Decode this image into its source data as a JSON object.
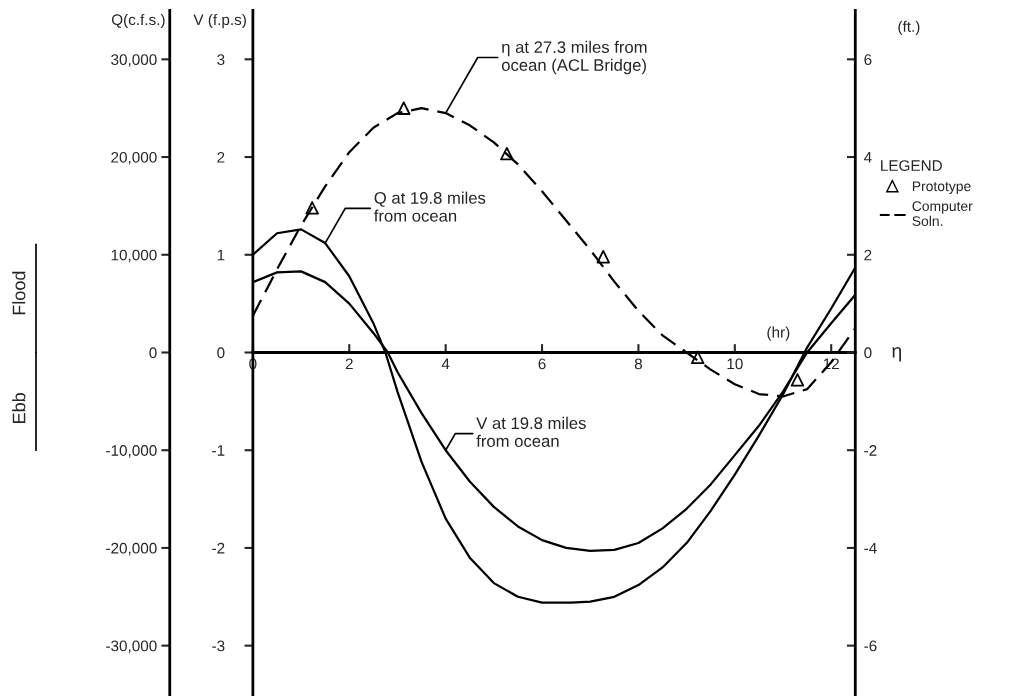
{
  "chart_data": {
    "type": "line",
    "xlabel": "(hr)",
    "ylabel": "V (f.p.s)",
    "y2label": "(ft.)",
    "y3label": "Q(c.f.s.)",
    "legend_title": "LEGEND",
    "annotations": [
      "Flood",
      "Ebb",
      "η",
      "Computer\nSoln."
    ],
    "xlim": [
      0,
      12.5
    ],
    "xticks": [
      0,
      2,
      4,
      6,
      8,
      10,
      12
    ],
    "ylim": [
      -3.5,
      3.5
    ],
    "yticks": [
      -3,
      -2,
      -1,
      0,
      1,
      2,
      3
    ],
    "y2lim": [
      -7,
      7
    ],
    "y2ticks": [
      -6,
      -4,
      -2,
      0,
      2,
      4,
      6
    ],
    "y3lim": [
      -35000,
      35000
    ],
    "y3ticks": [
      {
        "value": -30000,
        "label": "-30,000"
      },
      {
        "value": -20000,
        "label": "-20,000"
      },
      {
        "value": -10000,
        "label": "-10,000"
      },
      0,
      {
        "value": 10000,
        "label": "10,000"
      },
      {
        "value": 20000,
        "label": "20,000"
      },
      {
        "value": 30000,
        "label": "30,000"
      }
    ],
    "legend": "right",
    "series": [
      {
        "name": "Q at 19.8 miles\nfrom ocean",
        "axis": "y3",
        "color": "#000000",
        "line_style": "solid",
        "x": [
          0,
          0.5,
          1,
          1.5,
          2,
          2.5,
          2.75,
          3,
          3.5,
          4,
          4.5,
          5,
          5.5,
          6,
          6.6,
          7,
          7.5,
          8,
          8.5,
          9,
          9.5,
          10,
          10.5,
          11,
          11.5,
          12,
          12.5
        ],
        "values": [
          10000,
          12200,
          12600,
          11200,
          7800,
          3000,
          0,
          -4000,
          -11200,
          -17000,
          -21000,
          -23600,
          -25000,
          -25600,
          -25600,
          -25500,
          -25000,
          -23800,
          -22000,
          -19500,
          -16200,
          -12500,
          -8500,
          -4300,
          500,
          4500,
          8700
        ]
      },
      {
        "name": "V at 19.8 miles\nfrom ocean",
        "axis": "y",
        "color": "#000000",
        "line_style": "solid",
        "x": [
          0,
          0.5,
          1,
          1.5,
          2,
          2.5,
          2.8,
          3,
          3.5,
          4,
          4.5,
          5,
          5.5,
          6,
          6.5,
          7,
          7.5,
          8,
          8.5,
          9,
          9.5,
          10,
          10.5,
          11,
          11.5,
          12,
          12.5
        ],
        "values": [
          0.72,
          0.82,
          0.83,
          0.72,
          0.5,
          0.2,
          0,
          -0.2,
          -0.62,
          -1.0,
          -1.32,
          -1.58,
          -1.78,
          -1.92,
          -2.0,
          -2.03,
          -2.02,
          -1.95,
          -1.8,
          -1.6,
          -1.35,
          -1.05,
          -0.75,
          -0.4,
          0.0,
          0.3,
          0.59
        ]
      },
      {
        "name": "η at 27.3 miles from\nocean (ACL Bridge)",
        "axis": "y2",
        "color": "#000000",
        "line_style": "dashed",
        "x": [
          0,
          0.5,
          1,
          1.5,
          2,
          2.5,
          3,
          3.5,
          4,
          4.5,
          5,
          5.5,
          6,
          6.5,
          7,
          7.5,
          8,
          8.5,
          9,
          9.5,
          10,
          10.5,
          11,
          11.5,
          12,
          12.5
        ],
        "values": [
          0.75,
          1.7,
          2.6,
          3.4,
          4.1,
          4.6,
          4.9,
          5.0,
          4.9,
          4.65,
          4.3,
          3.85,
          3.3,
          2.7,
          2.1,
          1.45,
          0.85,
          0.35,
          0.0,
          -0.35,
          -0.65,
          -0.85,
          -0.9,
          -0.75,
          -0.2,
          0.5
        ]
      },
      {
        "name": "Prototype",
        "type": "scatter",
        "axis": "y2",
        "color": "#000000",
        "marker": "triangle",
        "x": [
          1.23,
          3.13,
          5.27,
          7.27,
          9.23,
          11.3
        ],
        "values": [
          2.96,
          5.0,
          4.07,
          1.96,
          -0.1,
          -0.56
        ]
      }
    ]
  }
}
